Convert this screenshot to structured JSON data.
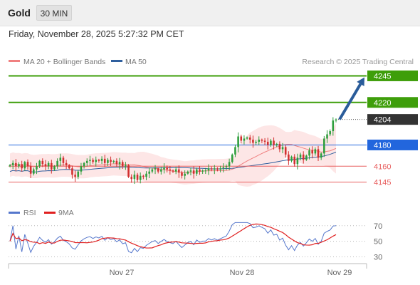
{
  "header": {
    "symbol": "Gold",
    "timeframe": "30 MIN",
    "datetime": "Friday, November 28, 2025 5:27:32 PM CET"
  },
  "colors": {
    "ma20": "#f08080",
    "ma50": "#2f5f9e",
    "bollinger_fill": "#fde2e2",
    "bull_candle": "#2e9e3c",
    "bear_candle": "#d23030",
    "target_green": "#3e9e0a",
    "pivot_blue": "#2266dd",
    "support_red": "#e86060",
    "last_price_tag": "#333333",
    "arrow": "#2a5c9a",
    "rsi": "#5577cc",
    "rsi_ma": "#e02020"
  },
  "chart_data": [
    {
      "type": "candlestick",
      "legend": [
        {
          "label": "MA 20 + Bollinger Bands",
          "color": "#f08080"
        },
        {
          "label": "MA 50",
          "color": "#2f5f9e"
        }
      ],
      "watermark": "Research © 2025 Trading Central",
      "ylim": [
        4122,
        4252
      ],
      "levels": [
        {
          "value": 4245,
          "label": "4245",
          "kind": "target"
        },
        {
          "value": 4220,
          "label": "4220",
          "kind": "target"
        },
        {
          "value": 4180,
          "label": "4180",
          "kind": "pivot"
        },
        {
          "value": 4160,
          "label": "4160",
          "kind": "support"
        },
        {
          "value": 4145,
          "label": "4145",
          "kind": "support"
        }
      ],
      "last_price": {
        "value": 4204,
        "label": "4204"
      },
      "arrow": {
        "from_price": 4204,
        "to_price": 4245
      },
      "x_ticks": [
        "Nov 27",
        "Nov 28",
        "Nov 29"
      ],
      "close": [
        4161,
        4163,
        4160,
        4162,
        4158,
        4164,
        4160,
        4153,
        4157,
        4160,
        4165,
        4162,
        4160,
        4163,
        4157,
        4160,
        4165,
        4168,
        4163,
        4161,
        4158,
        4152,
        4150,
        4155,
        4160,
        4163,
        4165,
        4166,
        4164,
        4166,
        4165,
        4167,
        4163,
        4166,
        4164,
        4165,
        4162,
        4164,
        4160,
        4161,
        4150,
        4148,
        4152,
        4147,
        4151,
        4150,
        4153,
        4155,
        4157,
        4158,
        4155,
        4157,
        4159,
        4157,
        4156,
        4155,
        4157,
        4154,
        4151,
        4153,
        4155,
        4156,
        4153,
        4157,
        4155,
        4156,
        4156,
        4158,
        4157,
        4158,
        4157,
        4158,
        4159,
        4160,
        4164,
        4171,
        4178,
        4188,
        4184,
        4186,
        4187,
        4185,
        4182,
        4183,
        4185,
        4184,
        4183,
        4180,
        4184,
        4180,
        4181,
        4176,
        4178,
        4171,
        4165,
        4169,
        4162,
        4168,
        4171,
        4166,
        4170,
        4175,
        4172,
        4176,
        4168,
        4172,
        4186,
        4190,
        4193,
        4203,
        4204
      ]
    },
    {
      "type": "line",
      "legend": [
        {
          "label": "RSI",
          "color": "#5577cc"
        },
        {
          "label": "9MA",
          "color": "#e02020"
        }
      ],
      "ylim": [
        25,
        78
      ],
      "reference_lines": [
        70,
        50,
        30
      ],
      "y_ticks": [
        "70",
        "50",
        "30"
      ]
    }
  ]
}
